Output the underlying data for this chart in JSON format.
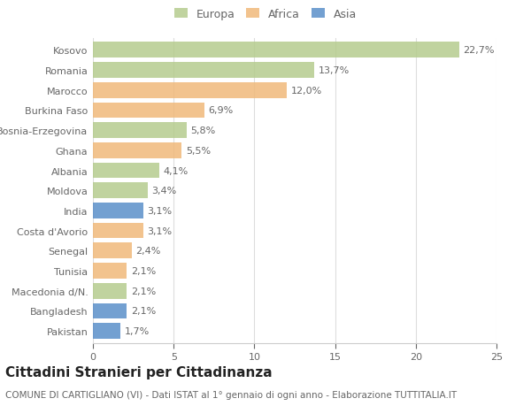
{
  "categories": [
    "Kosovo",
    "Romania",
    "Marocco",
    "Burkina Faso",
    "Bosnia-Erzegovina",
    "Ghana",
    "Albania",
    "Moldova",
    "India",
    "Costa d'Avorio",
    "Senegal",
    "Tunisia",
    "Macedonia d/N.",
    "Bangladesh",
    "Pakistan"
  ],
  "values": [
    22.7,
    13.7,
    12.0,
    6.9,
    5.8,
    5.5,
    4.1,
    3.4,
    3.1,
    3.1,
    2.4,
    2.1,
    2.1,
    2.1,
    1.7
  ],
  "continents": [
    "Europa",
    "Europa",
    "Africa",
    "Africa",
    "Europa",
    "Africa",
    "Europa",
    "Europa",
    "Asia",
    "Africa",
    "Africa",
    "Africa",
    "Europa",
    "Asia",
    "Asia"
  ],
  "colors": {
    "Europa": "#b5cc8e",
    "Africa": "#f0b97a",
    "Asia": "#5b8fc9"
  },
  "legend_labels": [
    "Europa",
    "Africa",
    "Asia"
  ],
  "legend_colors": [
    "#b5cc8e",
    "#f0b97a",
    "#5b8fc9"
  ],
  "title": "Cittadini Stranieri per Cittadinanza",
  "subtitle": "COMUNE DI CARTIGLIANO (VI) - Dati ISTAT al 1° gennaio di ogni anno - Elaborazione TUTTITALIA.IT",
  "xlim": [
    0,
    25
  ],
  "xticks": [
    0,
    5,
    10,
    15,
    20,
    25
  ],
  "background_color": "#ffffff",
  "bar_height": 0.78,
  "label_fontsize": 8,
  "tick_fontsize": 8,
  "title_fontsize": 11,
  "subtitle_fontsize": 7.5
}
